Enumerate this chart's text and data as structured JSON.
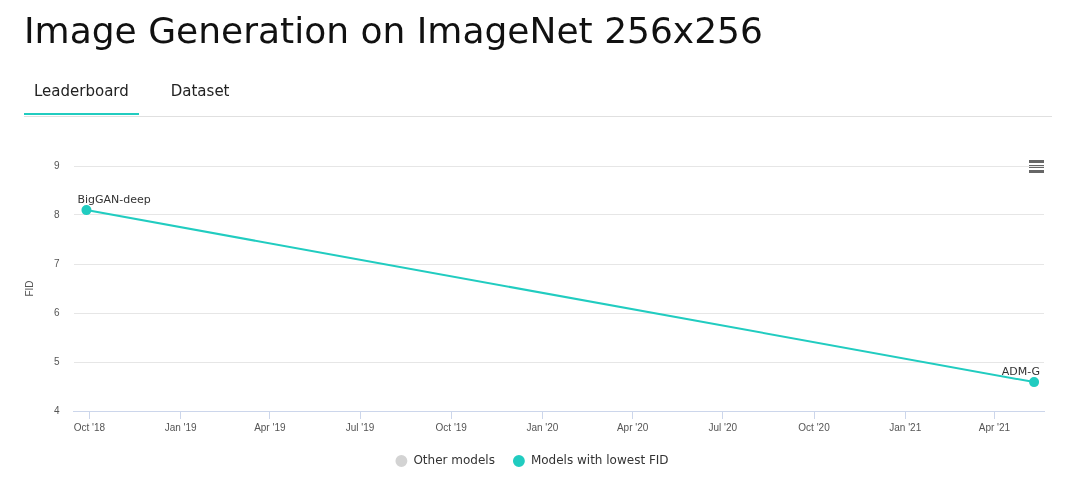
{
  "chart_data": {
    "type": "line",
    "title": "Image Generation on ImageNet 256x256",
    "ylabel": "FID",
    "x": [
      "2018-09-28",
      "2021-05-11"
    ],
    "series": [
      {
        "name": "Other models",
        "color": "#d3d3d3",
        "values": [
          null,
          null
        ]
      },
      {
        "name": "Models with lowest FID",
        "color": "#21ccc0",
        "values": [
          8.1,
          4.59
        ]
      }
    ],
    "annotations": [
      "Leaderboard",
      "Dataset",
      {
        "text": "BigGAN-deep",
        "x": "2018-09-28",
        "y": 8.1
      },
      {
        "text": "ADM-G",
        "x": "2021-05-11",
        "y": 4.59
      }
    ],
    "xlim": [
      "2018-09-15",
      "2021-05-21"
    ],
    "xticks": [
      {
        "value": "2018-10",
        "label": "Oct '18"
      },
      {
        "value": "2019-01",
        "label": "Jan '19"
      },
      {
        "value": "2019-04",
        "label": "Apr '19"
      },
      {
        "value": "2019-07",
        "label": "Jul '19"
      },
      {
        "value": "2019-10",
        "label": "Oct '19"
      },
      {
        "value": "2020-01",
        "label": "Jan '20"
      },
      {
        "value": "2020-04",
        "label": "Apr '20"
      },
      {
        "value": "2020-07",
        "label": "Jul '20"
      },
      {
        "value": "2020-10",
        "label": "Oct '20"
      },
      {
        "value": "2021-01",
        "label": "Jan '21"
      },
      {
        "value": "2021-04",
        "label": "Apr '21"
      }
    ],
    "ylim": [
      4,
      9
    ],
    "yticks": [
      4,
      5,
      6,
      7,
      8,
      9
    ],
    "grid": "y",
    "legend": "bottom",
    "marker": "circle",
    "line_style": "solid"
  }
}
